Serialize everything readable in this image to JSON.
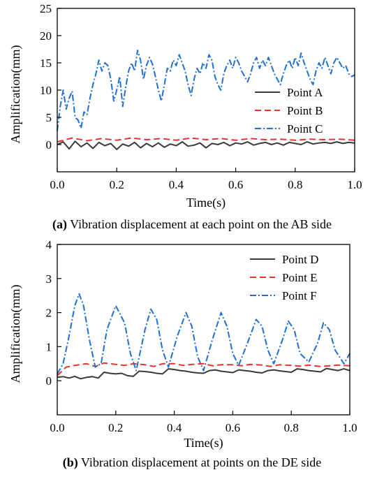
{
  "chart_data": [
    {
      "type": "line",
      "panel": "a",
      "xlabel": "Time(s)",
      "ylabel": "Amplification(mm)",
      "xlim": [
        0.0,
        1.0
      ],
      "ylim": [
        -5,
        25
      ],
      "xticks": [
        "0.0",
        "0.2",
        "0.4",
        "0.6",
        "0.8",
        "1.0"
      ],
      "yticks": [
        "0",
        "5",
        "10",
        "15",
        "20",
        "25"
      ],
      "legend_position": "right",
      "grid": false,
      "series": [
        {
          "name": "Point A",
          "color": "#3a3a3a",
          "dash": "solid",
          "x": [
            0.0,
            0.02,
            0.04,
            0.06,
            0.08,
            0.1,
            0.12,
            0.14,
            0.16,
            0.18,
            0.2,
            0.22,
            0.24,
            0.26,
            0.28,
            0.3,
            0.32,
            0.34,
            0.36,
            0.38,
            0.4,
            0.42,
            0.44,
            0.46,
            0.48,
            0.5,
            0.52,
            0.54,
            0.56,
            0.58,
            0.6,
            0.62,
            0.64,
            0.66,
            0.68,
            0.7,
            0.72,
            0.74,
            0.76,
            0.78,
            0.8,
            0.82,
            0.84,
            0.86,
            0.88,
            0.9,
            0.92,
            0.94,
            0.96,
            0.98,
            1.0
          ],
          "y": [
            0.0,
            0.5,
            -0.8,
            0.6,
            -0.4,
            0.3,
            -0.7,
            0.4,
            -0.2,
            0.2,
            -0.9,
            0.1,
            -0.3,
            0.4,
            -0.6,
            0.2,
            -0.4,
            0.3,
            -0.5,
            0.1,
            -0.2,
            0.5,
            -0.3,
            -0.1,
            0.3,
            -0.6,
            0.2,
            0.0,
            0.4,
            -0.2,
            0.3,
            0.1,
            0.5,
            -0.1,
            0.2,
            0.4,
            0.0,
            0.3,
            -0.1,
            0.4,
            0.2,
            0.0,
            0.5,
            0.1,
            0.3,
            0.4,
            0.2,
            0.5,
            0.2,
            0.4,
            0.3
          ]
        },
        {
          "name": "Point B",
          "color": "#e8322b",
          "dash": "dashed",
          "x": [
            0.0,
            0.05,
            0.1,
            0.15,
            0.2,
            0.25,
            0.3,
            0.35,
            0.4,
            0.45,
            0.5,
            0.55,
            0.6,
            0.65,
            0.7,
            0.75,
            0.8,
            0.85,
            0.9,
            0.95,
            1.0
          ],
          "y": [
            0.5,
            1.2,
            0.7,
            1.1,
            0.8,
            1.2,
            0.9,
            1.1,
            0.8,
            1.2,
            0.9,
            1.1,
            0.8,
            1.1,
            0.9,
            1.0,
            0.8,
            1.0,
            0.9,
            1.0,
            0.8
          ]
        },
        {
          "name": "Point C",
          "color": "#1f6fd1",
          "dash": "dashdot",
          "x": [
            0.0,
            0.01,
            0.02,
            0.03,
            0.04,
            0.05,
            0.06,
            0.07,
            0.08,
            0.09,
            0.1,
            0.11,
            0.12,
            0.13,
            0.14,
            0.15,
            0.16,
            0.17,
            0.18,
            0.19,
            0.2,
            0.21,
            0.22,
            0.23,
            0.24,
            0.25,
            0.26,
            0.27,
            0.28,
            0.29,
            0.3,
            0.31,
            0.32,
            0.33,
            0.34,
            0.35,
            0.36,
            0.37,
            0.38,
            0.39,
            0.4,
            0.41,
            0.42,
            0.43,
            0.44,
            0.45,
            0.46,
            0.47,
            0.48,
            0.49,
            0.5,
            0.51,
            0.52,
            0.53,
            0.54,
            0.55,
            0.56,
            0.57,
            0.58,
            0.59,
            0.6,
            0.61,
            0.62,
            0.63,
            0.64,
            0.65,
            0.66,
            0.67,
            0.68,
            0.69,
            0.7,
            0.71,
            0.72,
            0.73,
            0.74,
            0.75,
            0.76,
            0.77,
            0.78,
            0.79,
            0.8,
            0.81,
            0.82,
            0.83,
            0.84,
            0.85,
            0.86,
            0.87,
            0.88,
            0.89,
            0.9,
            0.91,
            0.92,
            0.93,
            0.94,
            0.95,
            0.96,
            0.97,
            0.98,
            0.99,
            1.0
          ],
          "y": [
            2.5,
            7.0,
            10.0,
            6.5,
            8.5,
            9.8,
            5.0,
            4.5,
            3.0,
            6.0,
            5.5,
            8.5,
            11.0,
            13.0,
            15.5,
            13.5,
            15.0,
            14.5,
            12.0,
            8.0,
            10.0,
            12.5,
            7.0,
            10.5,
            13.5,
            15.0,
            13.5,
            17.3,
            15.5,
            12.0,
            14.5,
            16.0,
            14.8,
            12.5,
            10.0,
            8.0,
            11.0,
            14.0,
            13.5,
            15.5,
            14.5,
            16.5,
            15.0,
            13.5,
            11.0,
            9.0,
            12.0,
            14.0,
            13.0,
            15.0,
            14.0,
            16.5,
            15.5,
            12.5,
            11.0,
            10.0,
            13.0,
            14.5,
            15.5,
            14.0,
            16.0,
            15.0,
            13.5,
            12.5,
            11.5,
            13.0,
            15.0,
            16.0,
            14.0,
            15.5,
            14.5,
            16.0,
            14.5,
            13.0,
            12.0,
            11.0,
            13.0,
            14.5,
            15.5,
            14.0,
            16.0,
            14.5,
            16.8,
            15.0,
            13.5,
            12.0,
            11.0,
            13.5,
            15.0,
            14.0,
            16.0,
            14.5,
            13.0,
            15.0,
            16.0,
            15.0,
            14.0,
            14.5,
            13.0,
            12.5,
            12.8
          ]
        }
      ]
    },
    {
      "type": "line",
      "panel": "b",
      "xlabel": "Time(s)",
      "ylabel": "Amplification(mm)",
      "xlim": [
        0.0,
        1.0
      ],
      "ylim": [
        -1,
        4
      ],
      "xticks": [
        "0.0",
        "0.2",
        "0.4",
        "0.6",
        "0.8",
        "1.0"
      ],
      "yticks": [
        "0",
        "1",
        "2",
        "3",
        "4"
      ],
      "legend_position": "top-right",
      "grid": false,
      "series": [
        {
          "name": "Point D",
          "color": "#3a3a3a",
          "dash": "solid",
          "x": [
            0.0,
            0.02,
            0.04,
            0.06,
            0.08,
            0.1,
            0.12,
            0.14,
            0.16,
            0.18,
            0.2,
            0.22,
            0.24,
            0.26,
            0.28,
            0.3,
            0.32,
            0.34,
            0.36,
            0.38,
            0.4,
            0.42,
            0.44,
            0.46,
            0.48,
            0.5,
            0.52,
            0.54,
            0.56,
            0.58,
            0.6,
            0.62,
            0.64,
            0.66,
            0.68,
            0.7,
            0.72,
            0.74,
            0.76,
            0.78,
            0.8,
            0.82,
            0.84,
            0.86,
            0.88,
            0.9,
            0.92,
            0.94,
            0.96,
            0.98,
            1.0
          ],
          "y": [
            0.1,
            0.12,
            0.08,
            0.13,
            0.06,
            0.1,
            0.12,
            0.08,
            0.25,
            0.22,
            0.2,
            0.22,
            0.15,
            0.13,
            0.28,
            0.27,
            0.25,
            0.22,
            0.2,
            0.35,
            0.33,
            0.3,
            0.28,
            0.25,
            0.23,
            0.22,
            0.3,
            0.32,
            0.28,
            0.26,
            0.24,
            0.32,
            0.3,
            0.28,
            0.25,
            0.23,
            0.3,
            0.32,
            0.29,
            0.27,
            0.25,
            0.35,
            0.33,
            0.3,
            0.28,
            0.26,
            0.36,
            0.33,
            0.3,
            0.35,
            0.3
          ]
        },
        {
          "name": "Point E",
          "color": "#e8322b",
          "dash": "dashed",
          "x": [
            0.0,
            0.03,
            0.06,
            0.1,
            0.13,
            0.16,
            0.2,
            0.23,
            0.26,
            0.3,
            0.33,
            0.36,
            0.4,
            0.43,
            0.46,
            0.5,
            0.53,
            0.56,
            0.6,
            0.63,
            0.66,
            0.7,
            0.73,
            0.76,
            0.8,
            0.83,
            0.86,
            0.9,
            0.93,
            0.96,
            1.0
          ],
          "y": [
            0.15,
            0.4,
            0.45,
            0.5,
            0.42,
            0.52,
            0.48,
            0.45,
            0.5,
            0.47,
            0.42,
            0.5,
            0.5,
            0.45,
            0.48,
            0.5,
            0.44,
            0.47,
            0.47,
            0.44,
            0.48,
            0.46,
            0.42,
            0.47,
            0.45,
            0.43,
            0.46,
            0.42,
            0.44,
            0.46,
            0.44
          ]
        },
        {
          "name": "Point F",
          "color": "#1f6fd1",
          "dash": "dashdot",
          "x": [
            0.0,
            0.02,
            0.04,
            0.06,
            0.075,
            0.09,
            0.11,
            0.13,
            0.15,
            0.17,
            0.2,
            0.23,
            0.25,
            0.27,
            0.3,
            0.32,
            0.34,
            0.36,
            0.38,
            0.41,
            0.44,
            0.46,
            0.48,
            0.5,
            0.53,
            0.56,
            0.58,
            0.6,
            0.62,
            0.65,
            0.68,
            0.7,
            0.72,
            0.74,
            0.77,
            0.79,
            0.81,
            0.83,
            0.86,
            0.89,
            0.91,
            0.93,
            0.95,
            0.98,
            1.0
          ],
          "y": [
            0.2,
            0.5,
            1.3,
            2.2,
            2.55,
            2.2,
            1.2,
            0.4,
            0.5,
            1.5,
            2.2,
            1.7,
            0.8,
            0.3,
            1.5,
            2.1,
            1.8,
            0.9,
            0.4,
            1.3,
            2.0,
            1.6,
            0.7,
            0.3,
            1.2,
            2.0,
            1.6,
            0.8,
            0.45,
            1.1,
            1.8,
            1.6,
            0.9,
            0.5,
            1.2,
            1.75,
            1.5,
            0.8,
            0.55,
            1.1,
            1.7,
            1.5,
            0.9,
            0.5,
            0.8
          ]
        }
      ]
    }
  ],
  "captions": [
    {
      "label": "(a)",
      "text": " Vibration displacement at each point on the AB side"
    },
    {
      "label": "(b)",
      "text": " Vibration displacement at points on the DE side"
    }
  ]
}
